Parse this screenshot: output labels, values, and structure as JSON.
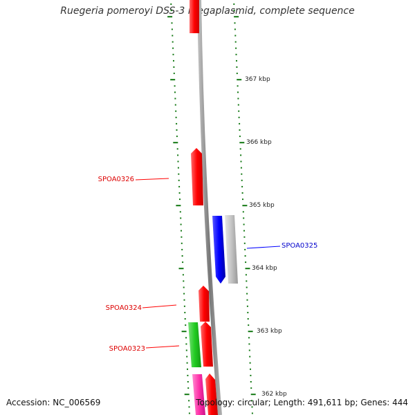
{
  "title": "Ruegeria pomeroyi DSS-3 megaplasmid, complete sequence",
  "footer": {
    "accession": "Accession: NC_006569",
    "topology": "Topology: circular; Length: 491,611 bp; Genes: 444"
  },
  "tick_labels": [
    "367 kbp",
    "366 kbp",
    "365 kbp",
    "364 kbp",
    "363 kbp",
    "362 kbp"
  ],
  "gene_labels": [
    "SPOA0326",
    "SPOA0325",
    "SPOA0324",
    "SPOA0323"
  ],
  "colors": {
    "forward_cds": "#ff0000",
    "reverse_cds": "#0000ff",
    "other_cds": "#c0c0c0",
    "rna_gene": "#22cc22",
    "misc_feature": "#ff33aa",
    "ticks": "#117711",
    "backbone": "#888888"
  }
}
